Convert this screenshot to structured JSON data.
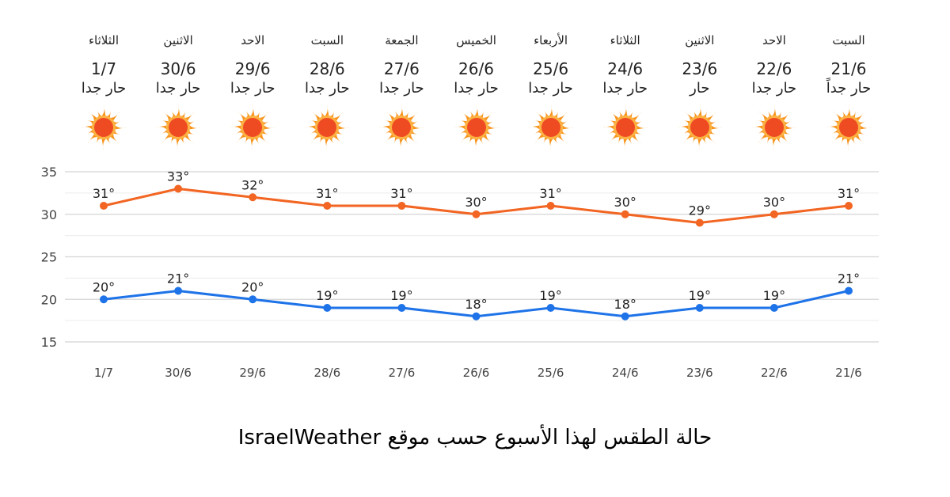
{
  "forecast": [
    {
      "day": "الثلاثاء",
      "date": "1/7",
      "condition": "حار جدا"
    },
    {
      "day": "الاثنين",
      "date": "30/6",
      "condition": "حار جدا"
    },
    {
      "day": "الاحد",
      "date": "29/6",
      "condition": "حار جدا"
    },
    {
      "day": "السبت",
      "date": "28/6",
      "condition": "حار جدا"
    },
    {
      "day": "الجمعة",
      "date": "27/6",
      "condition": "حار جدا"
    },
    {
      "day": "الخميس",
      "date": "26/6",
      "condition": "حار جدا"
    },
    {
      "day": "الأربعاء",
      "date": "25/6",
      "condition": "حار جدا"
    },
    {
      "day": "الثلاثاء",
      "date": "24/6",
      "condition": "حار جدا"
    },
    {
      "day": "الاثنين",
      "date": "23/6",
      "condition": "حار"
    },
    {
      "day": "الاحد",
      "date": "22/6",
      "condition": "حار جدا"
    },
    {
      "day": "السبت",
      "date": "21/6",
      "condition": "حار جداً"
    }
  ],
  "icon": "sun-icon",
  "colors": {
    "high": "#f26522",
    "low": "#1e73e8",
    "grid": "#e2e2e2",
    "sun": "#f7941d",
    "sun_core": "#ef4b23"
  },
  "chart_data": {
    "type": "line",
    "categories": [
      "1/7",
      "30/6",
      "29/6",
      "28/6",
      "27/6",
      "26/6",
      "25/6",
      "24/6",
      "23/6",
      "22/6",
      "21/6"
    ],
    "series": [
      {
        "values": [
          31,
          33,
          32,
          31,
          31,
          30,
          31,
          30,
          29,
          30,
          31
        ],
        "labels": [
          "31°",
          "33°",
          "32°",
          "31°",
          "31°",
          "30°",
          "31°",
          "30°",
          "29°",
          "30°",
          "31°"
        ]
      },
      {
        "values": [
          20,
          21,
          20,
          19,
          19,
          18,
          19,
          18,
          19,
          19,
          21
        ],
        "labels": [
          "20°",
          "21°",
          "20°",
          "19°",
          "19°",
          "18°",
          "19°",
          "18°",
          "19°",
          "19°",
          "21°"
        ]
      }
    ],
    "yticks": [
      15,
      20,
      25,
      30,
      35
    ],
    "ylim": [
      15,
      35
    ],
    "grid": true,
    "legend": "none"
  },
  "footer": {
    "caption": "حالة الطقس لهذا الأسبوع حسب موقع IsraelWeather"
  }
}
